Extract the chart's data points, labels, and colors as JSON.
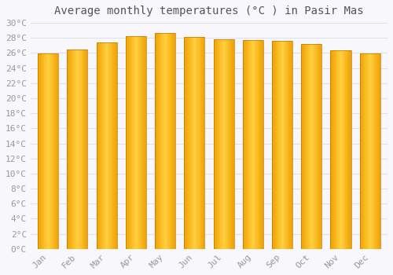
{
  "title": "Average monthly temperatures (°C ) in Pasir Mas",
  "months": [
    "Jan",
    "Feb",
    "Mar",
    "Apr",
    "May",
    "Jun",
    "Jul",
    "Aug",
    "Sep",
    "Oct",
    "Nov",
    "Dec"
  ],
  "values": [
    25.9,
    26.5,
    27.4,
    28.2,
    28.6,
    28.1,
    27.8,
    27.7,
    27.6,
    27.2,
    26.4,
    25.9
  ],
  "bar_color_center": "#FFD040",
  "bar_color_edge": "#F0A000",
  "bar_border_color": "#C07800",
  "ylim": [
    0,
    30
  ],
  "ytick_step": 2,
  "background_color": "#f8f8fc",
  "plot_bg_color": "#f8f8fc",
  "grid_color": "#e0e0e8",
  "title_fontsize": 10,
  "tick_fontsize": 8,
  "bar_width": 0.7
}
